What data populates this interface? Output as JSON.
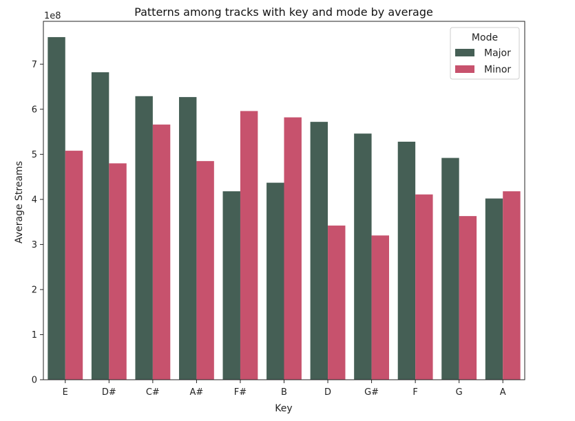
{
  "chart_data": {
    "type": "bar",
    "title": "Patterns among tracks with key and mode by average",
    "xlabel": "Key",
    "ylabel": "Average Streams",
    "y_scale_label": "1e8",
    "categories": [
      "E",
      "D#",
      "C#",
      "A#",
      "F#",
      "B",
      "D",
      "G#",
      "F",
      "G",
      "A"
    ],
    "y_ticks": [
      "0",
      "1",
      "2",
      "3",
      "4",
      "5",
      "6",
      "7"
    ],
    "ylim": [
      0,
      7.95
    ],
    "unit_multiplier": 100000000,
    "series": [
      {
        "name": "Major",
        "color": "#455f55",
        "values": [
          7.6,
          6.82,
          6.29,
          6.27,
          4.18,
          4.37,
          5.72,
          5.46,
          5.28,
          4.92,
          4.02
        ]
      },
      {
        "name": "Minor",
        "color": "#c7526d",
        "values": [
          5.08,
          4.8,
          5.66,
          4.85,
          5.96,
          5.82,
          3.42,
          3.2,
          4.11,
          3.63,
          4.18
        ]
      }
    ],
    "legend": {
      "title": "Mode",
      "position": "top-right"
    },
    "grid": false
  }
}
